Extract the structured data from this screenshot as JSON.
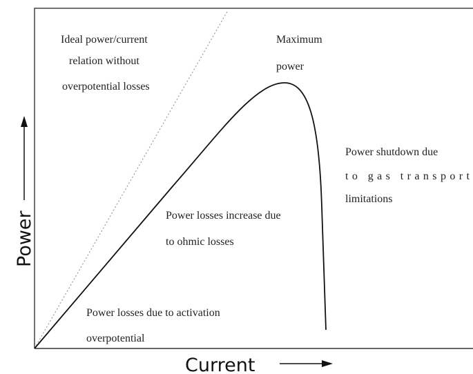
{
  "annotations": [
    {
      "lines": [
        "Ideal power/current",
        "relation without",
        "overpotential losses"
      ]
    },
    {
      "lines": [
        "Maximum",
        "power"
      ]
    },
    {
      "lines": [
        "Power shutdown due",
        "to gas transport",
        "limitations"
      ]
    },
    {
      "lines": [
        "Power losses increase due",
        "to ohmic losses"
      ]
    },
    {
      "lines": [
        "Power losses due to activation",
        "overpotential"
      ]
    }
  ],
  "y_axis_label": "Power",
  "x_axis_label": "Current"
}
